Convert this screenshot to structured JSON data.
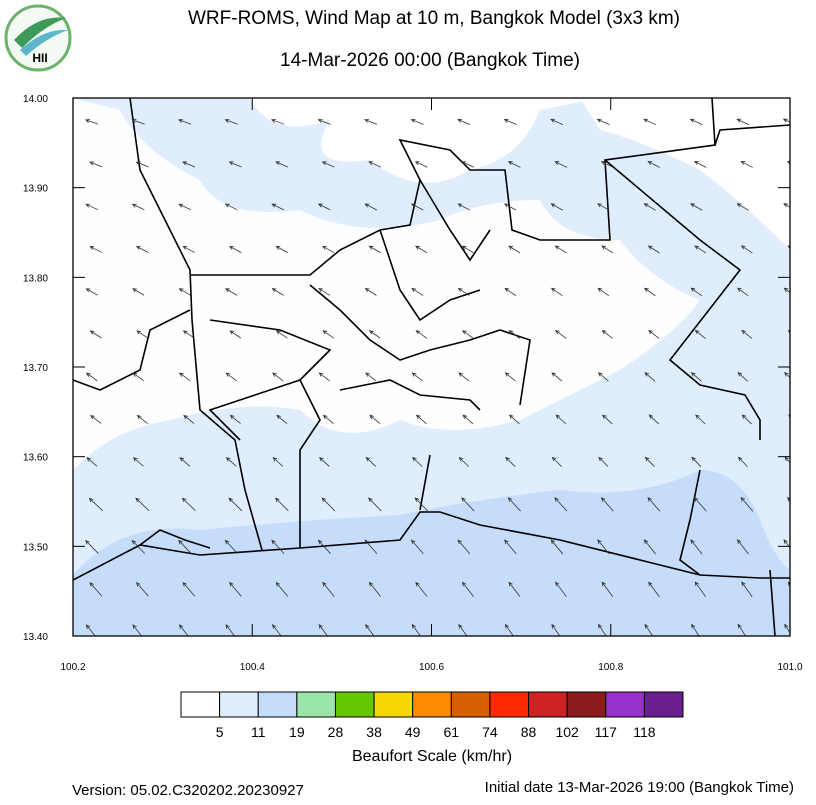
{
  "header": {
    "title": "WRF-ROMS, Wind Map at 10 m, Bangkok Model (3x3 km)",
    "subtitle": "14-Mar-2026 00:00 (Bangkok Time)",
    "logo": "HII"
  },
  "map": {
    "xlim": [
      100.2,
      101.0
    ],
    "ylim": [
      13.4,
      14.0
    ],
    "xticks": [
      100.2,
      100.4,
      100.6,
      100.8,
      {
        "value": 101.0,
        "label": "101.0"
      }
    ],
    "yticks": [
      {
        "value": 13.4,
        "label": "13.40"
      },
      {
        "value": 13.5,
        "label": "13.50"
      },
      {
        "value": 13.6,
        "label": "13.60"
      },
      {
        "value": 13.7,
        "label": "13.70"
      },
      {
        "value": 13.8,
        "label": "13.80"
      },
      {
        "value": 13.9,
        "label": "13.90"
      },
      {
        "value": 14.0,
        "label": "14.00"
      }
    ]
  },
  "colorbar": {
    "title": "Beaufort Scale (km/hr)",
    "colors": [
      "#ffffff",
      "#e0edfd",
      "#c6dcfb",
      "#99e6a8",
      "#66c800",
      "#f7d700",
      "#ff8c00",
      "#d65f00",
      "#ff2a00",
      "#cc2222",
      "#8c1a1a",
      "#9932cc",
      "#6b1f8f"
    ],
    "labels": [
      5,
      11,
      19,
      28,
      38,
      49,
      61,
      74,
      88,
      102,
      117,
      118
    ]
  },
  "footer": {
    "version": "Version: 05.02.C320202.20230927",
    "initial_date": "Initial date 13-Mar-2026 19:00 (Bangkok Time)"
  }
}
